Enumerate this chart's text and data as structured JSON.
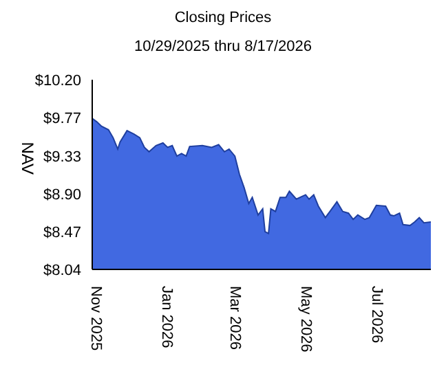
{
  "chart_data": {
    "type": "area",
    "title": "Closing Prices",
    "subtitle": "10/29/2025 thru 8/17/2026",
    "ylabel": "NAV",
    "x": [
      "2025-10-29",
      "2025-11-02",
      "2025-11-06",
      "2025-11-12",
      "2025-11-16",
      "2025-11-20",
      "2025-11-22",
      "2025-11-28",
      "2025-12-04",
      "2025-12-09",
      "2025-12-13",
      "2025-12-17",
      "2025-12-23",
      "2025-12-29",
      "2026-01-02",
      "2026-01-06",
      "2026-01-10",
      "2026-01-14",
      "2026-01-18",
      "2026-01-21",
      "2026-02-01",
      "2026-02-09",
      "2026-02-15",
      "2026-02-20",
      "2026-02-24",
      "2026-03-01",
      "2026-03-05",
      "2026-03-09",
      "2026-03-13",
      "2026-03-16",
      "2026-03-21",
      "2026-03-25",
      "2026-03-27",
      "2026-03-30",
      "2026-04-01",
      "2026-04-05",
      "2026-04-09",
      "2026-04-14",
      "2026-04-17",
      "2026-04-23",
      "2026-05-01",
      "2026-05-04",
      "2026-05-08",
      "2026-05-12",
      "2026-05-18",
      "2026-05-22",
      "2026-05-28",
      "2026-06-02",
      "2026-06-07",
      "2026-06-11",
      "2026-06-15",
      "2026-06-21",
      "2026-06-25",
      "2026-07-01",
      "2026-07-09",
      "2026-07-13",
      "2026-07-16",
      "2026-07-21",
      "2026-07-24",
      "2026-07-30",
      "2026-08-03",
      "2026-08-07",
      "2026-08-11",
      "2026-08-17"
    ],
    "values": [
      9.76,
      9.72,
      9.67,
      9.63,
      9.54,
      9.41,
      9.49,
      9.62,
      9.58,
      9.54,
      9.43,
      9.38,
      9.45,
      9.48,
      9.43,
      9.45,
      9.33,
      9.36,
      9.33,
      9.44,
      9.45,
      9.43,
      9.46,
      9.38,
      9.41,
      9.33,
      9.12,
      8.97,
      8.79,
      8.86,
      8.66,
      8.73,
      8.47,
      8.45,
      8.73,
      8.7,
      8.86,
      8.86,
      8.93,
      8.84,
      8.89,
      8.84,
      8.89,
      8.76,
      8.63,
      8.7,
      8.81,
      8.7,
      8.68,
      8.61,
      8.66,
      8.61,
      8.63,
      8.77,
      8.76,
      8.66,
      8.65,
      8.68,
      8.55,
      8.54,
      8.58,
      8.63,
      8.57,
      8.58
    ],
    "color": "#4169e1",
    "xlim": [
      "2025-10-29",
      "2026-08-17"
    ],
    "xticks": [
      {
        "value": "2025-11-01",
        "label": "Nov  2025"
      },
      {
        "value": "2026-01-01",
        "label": "Jan  2026"
      },
      {
        "value": "2026-03-01",
        "label": "Mar  2026"
      },
      {
        "value": "2026-05-01",
        "label": "May  2026"
      },
      {
        "value": "2026-07-01",
        "label": "Jul  2026"
      }
    ],
    "ylim": [
      8.04,
      10.2
    ],
    "yticks": [
      {
        "value": 8.04,
        "label": "$8.04"
      },
      {
        "value": 8.47,
        "label": "$8.47"
      },
      {
        "value": 8.9,
        "label": "$8.90"
      },
      {
        "value": 9.33,
        "label": "$9.33"
      },
      {
        "value": 9.77,
        "label": "$9.77"
      },
      {
        "value": 10.2,
        "label": "$10.20"
      }
    ],
    "grid": false,
    "legend": false
  }
}
